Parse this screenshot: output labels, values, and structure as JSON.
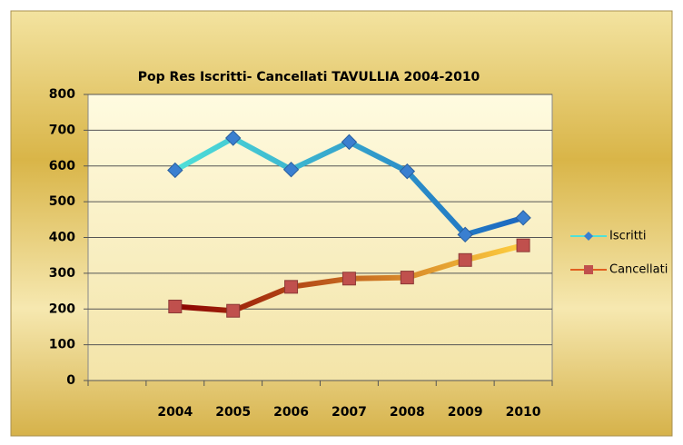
{
  "chart_data": {
    "type": "line",
    "title": "Pop Res  Iscritti- Cancellati  TAVULLIA 2004-2010",
    "categories": [
      null,
      "2004",
      "2005",
      "2006",
      "2007",
      "2008",
      "2009",
      "2010"
    ],
    "series": [
      {
        "name": "Iscritti",
        "color": "#3a7fd0",
        "marker": "diamond",
        "line_colors": [
          "#4fe0d8",
          "#1a66c0"
        ],
        "values": [
          null,
          588,
          678,
          590,
          667,
          585,
          408,
          455
        ]
      },
      {
        "name": "Cancellati",
        "color": "#c0504d",
        "marker": "square",
        "line_colors": [
          "#8b0000",
          "#ffd040"
        ],
        "values": [
          null,
          207,
          195,
          262,
          285,
          288,
          337,
          378
        ]
      }
    ],
    "ylim": [
      0,
      800
    ],
    "yticks": [
      0,
      100,
      200,
      300,
      400,
      500,
      600,
      700,
      800
    ],
    "grid": true,
    "legend": "right"
  }
}
